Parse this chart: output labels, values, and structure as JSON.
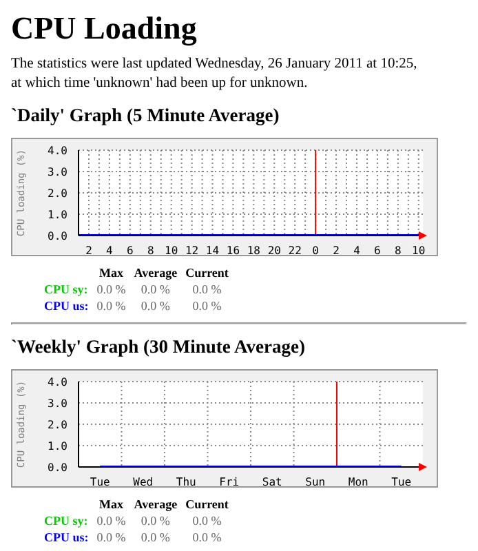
{
  "chart_data": [
    {
      "type": "other",
      "title": "CPU Loading",
      "subtitle": "The statistics were last updated Wednesday, 26 January 2011 at 10:25, at which time 'unknown' had been up for unknown."
    },
    {
      "type": "line",
      "title": "`Daily' Graph (5 Minute Average)",
      "ylabel": "CPU loading (%)",
      "x": [
        "2011-01-25T01:00",
        "2011-01-26T10:25"
      ],
      "series": [
        {
          "name": "CPU sy:",
          "color": "#00cc00",
          "values": [
            null,
            null
          ]
        },
        {
          "name": "CPU us:",
          "color": "#0000ff",
          "values": [
            0,
            0
          ]
        }
      ],
      "xlim": [
        "2011-01-25T01:00",
        "2011-01-26T10:25"
      ],
      "xticks": [
        {
          "value": "2011-01-25T01:00",
          "label": null
        },
        {
          "value": "2011-01-25T02:00",
          "label": "2"
        },
        {
          "value": "2011-01-25T03:00",
          "label": null
        },
        {
          "value": "2011-01-25T04:00",
          "label": "4"
        },
        {
          "value": "2011-01-25T05:00",
          "label": null
        },
        {
          "value": "2011-01-25T06:00",
          "label": "6"
        },
        {
          "value": "2011-01-25T07:00",
          "label": null
        },
        {
          "value": "2011-01-25T08:00",
          "label": "8"
        },
        {
          "value": "2011-01-25T09:00",
          "label": null
        },
        {
          "value": "2011-01-25T10:00",
          "label": "10"
        },
        {
          "value": "2011-01-25T11:00",
          "label": null
        },
        {
          "value": "2011-01-25T12:00",
          "label": "12"
        },
        {
          "value": "2011-01-25T13:00",
          "label": null
        },
        {
          "value": "2011-01-25T14:00",
          "label": "14"
        },
        {
          "value": "2011-01-25T15:00",
          "label": null
        },
        {
          "value": "2011-01-25T16:00",
          "label": "16"
        },
        {
          "value": "2011-01-25T17:00",
          "label": null
        },
        {
          "value": "2011-01-25T18:00",
          "label": "18"
        },
        {
          "value": "2011-01-25T19:00",
          "label": null
        },
        {
          "value": "2011-01-25T20:00",
          "label": "20"
        },
        {
          "value": "2011-01-25T21:00",
          "label": null
        },
        {
          "value": "2011-01-25T22:00",
          "label": "22"
        },
        {
          "value": "2011-01-25T23:00",
          "label": null
        },
        {
          "value": "2011-01-26T00:00",
          "label": "0"
        },
        {
          "value": "2011-01-26T01:00",
          "label": null
        },
        {
          "value": "2011-01-26T02:00",
          "label": "2"
        },
        {
          "value": "2011-01-26T03:00",
          "label": null
        },
        {
          "value": "2011-01-26T04:00",
          "label": "4"
        },
        {
          "value": "2011-01-26T05:00",
          "label": null
        },
        {
          "value": "2011-01-26T06:00",
          "label": "6"
        },
        {
          "value": "2011-01-26T07:00",
          "label": null
        },
        {
          "value": "2011-01-26T08:00",
          "label": "8"
        },
        {
          "value": "2011-01-26T09:00",
          "label": null
        },
        {
          "value": "2011-01-26T10:00",
          "label": "10"
        }
      ],
      "ylim": [
        0,
        4
      ],
      "yticks": [
        {
          "value": 0,
          "label": "0.0"
        },
        {
          "value": 1,
          "label": "1.0"
        },
        {
          "value": 2,
          "label": "2.0"
        },
        {
          "value": 3,
          "label": "3.0"
        },
        {
          "value": 4,
          "label": "4.0"
        }
      ],
      "ref_lines": [
        {
          "axis": "x",
          "value": "2011-01-26T00:00",
          "color": "#ff0000"
        }
      ],
      "grid": true,
      "legend": "bottom",
      "line_style": "solid",
      "annotations": [
        "Max",
        "Average",
        "Current",
        "0.0 %",
        "0.0 %",
        "0.0 %",
        "0.0 %",
        "0.0 %",
        "0.0 %"
      ]
    },
    {
      "type": "line",
      "title": "`Weekly' Graph (30 Minute Average)",
      "ylabel": "CPU loading (%)",
      "categories": [
        "Tue",
        "Wed",
        "Thu",
        "Fri",
        "Sat",
        "Sun",
        "Mon",
        "Tue"
      ],
      "series": [
        {
          "name": "CPU sy:",
          "color": "#00cc00",
          "values": [
            null,
            null,
            null,
            null,
            null,
            null,
            null,
            null
          ]
        },
        {
          "name": "CPU us:",
          "color": "#0000ff",
          "values": [
            0,
            0,
            0,
            0,
            0,
            0,
            0,
            0
          ]
        }
      ],
      "ylim": [
        0,
        4
      ],
      "yticks": [
        {
          "value": 0,
          "label": "0.0"
        },
        {
          "value": 1,
          "label": "1.0"
        },
        {
          "value": 2,
          "label": "2.0"
        },
        {
          "value": 3,
          "label": "3.0"
        },
        {
          "value": 4,
          "label": "4.0"
        }
      ],
      "ref_lines": [
        {
          "axis": "x",
          "value": "Mon",
          "color": "#ff0000"
        }
      ],
      "grid": true,
      "legend": "bottom",
      "line_style": "solid",
      "annotations": [
        "Max",
        "Average",
        "Current",
        "0.0 %",
        "0.0 %",
        "0.0 %",
        "0.0 %",
        "0.0 %",
        "0.0 %"
      ]
    }
  ]
}
